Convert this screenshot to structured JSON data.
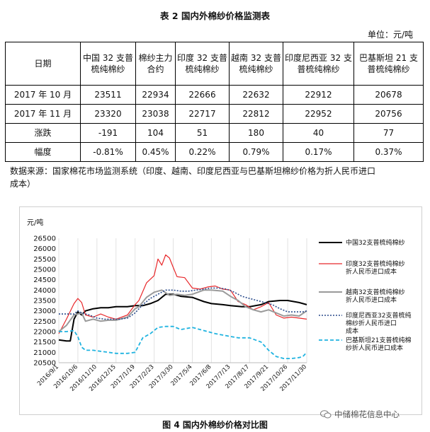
{
  "table": {
    "title": "表 2 国内外棉纱价格监测表",
    "unit": "单位：元/吨",
    "headers": [
      "日期",
      "中国 32 支普梳纯棉纱",
      "棉纱主力合约",
      "印度 32 支普梳纯棉纱",
      "越南 32 支普梳纯棉纱",
      "印度尼西亚 32 支普梳纯棉纱",
      "巴基斯坦 21 支普梳纯棉纱"
    ],
    "rows": [
      [
        "2017 年 10 月",
        "23511",
        "22934",
        "22666",
        "22632",
        "22912",
        "20678"
      ],
      [
        "2017 年 11 月",
        "23320",
        "23038",
        "22717",
        "22812",
        "22952",
        "20756"
      ],
      [
        "涨跌",
        "-191",
        "104",
        "51",
        "180",
        "40",
        "77"
      ],
      [
        "幅度",
        "-0.81%",
        "0.45%",
        "0.22%",
        "0.79%",
        "0.17%",
        "0.37%"
      ]
    ]
  },
  "source": "数据来源：国家棉花市场监测系统（印度、越南、印度尼西亚与巴基斯坦棉纱价格为折人民币进口成本）",
  "figure_caption": "图 4 国内外棉纱价格对比图",
  "watermark": "中储棉花信息中心",
  "colors": {
    "china": "#000000",
    "india": "#e8272a",
    "vietnam": "#9a9a9a",
    "indonesia": "#2b4c8c",
    "pakistan": "#1fb3e0"
  },
  "chart_data": {
    "type": "line",
    "ylabel": "元/吨",
    "ylim": [
      20500,
      26500
    ],
    "yticks": [
      20500,
      21000,
      21500,
      22000,
      22500,
      23000,
      23500,
      24000,
      24500,
      25000,
      25500,
      26000,
      26500
    ],
    "xticks": [
      "2016/9/1",
      "2016/10/6",
      "2016/11/10",
      "2016/12/15",
      "2017/1/19",
      "2017/2/23",
      "2017/3/30",
      "2017/5/4",
      "2017/6/8",
      "2017/7/13",
      "2017/8/17",
      "2017/9/21",
      "2017/10/26",
      "2017/11/30"
    ],
    "grid": "vertical",
    "legend_position": "right",
    "series": [
      {
        "name": "中国32支普梳纯棉纱",
        "x": [
          "2016/9/1",
          "2016/9/15",
          "2016/9/22",
          "2016/9/29",
          "2016/10/6",
          "2016/10/13",
          "2016/10/20",
          "2016/11/3",
          "2016/11/17",
          "2016/12/1",
          "2016/12/15",
          "2017/1/5",
          "2017/1/19",
          "2017/2/2",
          "2017/2/16",
          "2017/3/2",
          "2017/3/16",
          "2017/3/30",
          "2017/4/13",
          "2017/5/4",
          "2017/5/25",
          "2017/6/8",
          "2017/6/29",
          "2017/7/13",
          "2017/8/3",
          "2017/8/17",
          "2017/9/7",
          "2017/9/21",
          "2017/10/12",
          "2017/10/26",
          "2017/11/16",
          "2017/11/30"
        ],
        "values": [
          21600,
          21550,
          21550,
          22600,
          22950,
          22800,
          23000,
          23100,
          23150,
          23150,
          23200,
          23200,
          23250,
          23250,
          23350,
          23500,
          23800,
          23800,
          23700,
          23650,
          23450,
          23350,
          23300,
          23250,
          23200,
          23200,
          23300,
          23450,
          23500,
          23500,
          23400,
          23300
        ]
      },
      {
        "name": "印度32支普梳纯棉纱折人民币进口成本",
        "x": [
          "2016/9/1",
          "2016/9/15",
          "2016/9/29",
          "2016/10/6",
          "2016/10/13",
          "2016/10/20",
          "2016/11/3",
          "2016/11/17",
          "2016/12/1",
          "2016/12/15",
          "2017/1/5",
          "2017/1/19",
          "2017/1/26",
          "2017/2/9",
          "2017/2/23",
          "2017/3/2",
          "2017/3/9",
          "2017/3/16",
          "2017/3/23",
          "2017/3/30",
          "2017/4/6",
          "2017/4/20",
          "2017/5/4",
          "2017/5/18",
          "2017/6/1",
          "2017/6/15",
          "2017/6/29",
          "2017/7/13",
          "2017/7/27",
          "2017/8/10",
          "2017/8/24",
          "2017/9/7",
          "2017/9/21",
          "2017/10/5",
          "2017/10/19",
          "2017/11/2",
          "2017/11/16",
          "2017/11/30"
        ],
        "values": [
          21900,
          22600,
          23350,
          23600,
          23400,
          22800,
          22700,
          22850,
          22700,
          22600,
          22800,
          23300,
          23500,
          24350,
          24700,
          25500,
          25200,
          25700,
          25550,
          25100,
          24650,
          24600,
          24100,
          24050,
          24150,
          24200,
          24050,
          24000,
          23450,
          23300,
          23050,
          23200,
          23400,
          22800,
          22650,
          22700,
          22650,
          22600
        ]
      },
      {
        "name": "越南32支普梳纯棉纱折人民币进口成本",
        "x": [
          "2016/9/1",
          "2016/9/15",
          "2016/9/29",
          "2016/10/13",
          "2016/10/20",
          "2016/11/3",
          "2016/11/17",
          "2016/12/1",
          "2016/12/15",
          "2017/1/5",
          "2017/1/19",
          "2017/1/26",
          "2017/2/9",
          "2017/2/23",
          "2017/3/9",
          "2017/3/23",
          "2017/4/6",
          "2017/4/20",
          "2017/5/4",
          "2017/5/25",
          "2017/6/8",
          "2017/6/29",
          "2017/7/13",
          "2017/7/27",
          "2017/8/10",
          "2017/8/24",
          "2017/9/7",
          "2017/9/21",
          "2017/10/5",
          "2017/10/19",
          "2017/11/2",
          "2017/11/16",
          "2017/11/30"
        ],
        "values": [
          22000,
          22300,
          22800,
          22900,
          22500,
          22600,
          22500,
          22550,
          22550,
          22700,
          23100,
          23200,
          23650,
          23900,
          24000,
          23750,
          23800,
          23750,
          23800,
          24000,
          24000,
          23950,
          23700,
          23500,
          23200,
          23050,
          22950,
          23050,
          22900,
          22750,
          22800,
          22750,
          23000
        ]
      },
      {
        "name": "印度尼西亚32支普梳纯棉纱折人民币进口成本",
        "x": [
          "2016/9/1",
          "2016/9/29",
          "2016/10/6",
          "2016/10/13",
          "2016/10/27",
          "2016/11/10",
          "2016/11/24",
          "2016/12/8",
          "2016/12/22",
          "2017/1/5",
          "2017/1/19",
          "2017/2/2",
          "2017/2/16",
          "2017/3/2",
          "2017/3/16",
          "2017/3/30",
          "2017/4/13",
          "2017/4/27",
          "2017/5/11",
          "2017/5/25",
          "2017/6/8",
          "2017/6/22",
          "2017/7/6",
          "2017/7/20",
          "2017/8/3",
          "2017/8/17",
          "2017/8/31",
          "2017/9/14",
          "2017/9/28",
          "2017/10/12",
          "2017/10/26",
          "2017/11/9",
          "2017/11/23",
          "2017/11/30"
        ],
        "values": [
          22850,
          22850,
          23000,
          22900,
          22800,
          22650,
          22600,
          22600,
          22600,
          22650,
          22900,
          23300,
          23600,
          23800,
          24000,
          24000,
          23950,
          23950,
          24000,
          24050,
          24100,
          24100,
          24050,
          23900,
          23700,
          23600,
          23500,
          23400,
          23300,
          23100,
          22950,
          22950,
          22950,
          23000
        ]
      },
      {
        "name": "巴基斯坦21支普梳纯棉纱折人民币进口成本",
        "x": [
          "2016/9/1",
          "2016/9/15",
          "2016/9/29",
          "2016/10/6",
          "2016/10/13",
          "2016/10/20",
          "2016/11/3",
          "2016/11/17",
          "2016/12/1",
          "2016/12/15",
          "2017/1/5",
          "2017/1/19",
          "2017/2/2",
          "2017/2/16",
          "2017/3/2",
          "2017/3/16",
          "2017/3/30",
          "2017/4/13",
          "2017/5/4",
          "2017/5/25",
          "2017/6/15",
          "2017/7/6",
          "2017/7/27",
          "2017/8/17",
          "2017/9/7",
          "2017/9/21",
          "2017/10/5",
          "2017/10/19",
          "2017/11/2",
          "2017/11/16",
          "2017/11/23",
          "2017/11/30"
        ],
        "values": [
          22000,
          22000,
          22050,
          21750,
          21250,
          21100,
          21100,
          21050,
          21000,
          20950,
          20950,
          21000,
          21700,
          21900,
          22200,
          22250,
          22250,
          22100,
          22200,
          22050,
          21900,
          21800,
          21700,
          21700,
          21500,
          21100,
          20800,
          20700,
          20700,
          20750,
          20800,
          21000
        ]
      }
    ]
  }
}
